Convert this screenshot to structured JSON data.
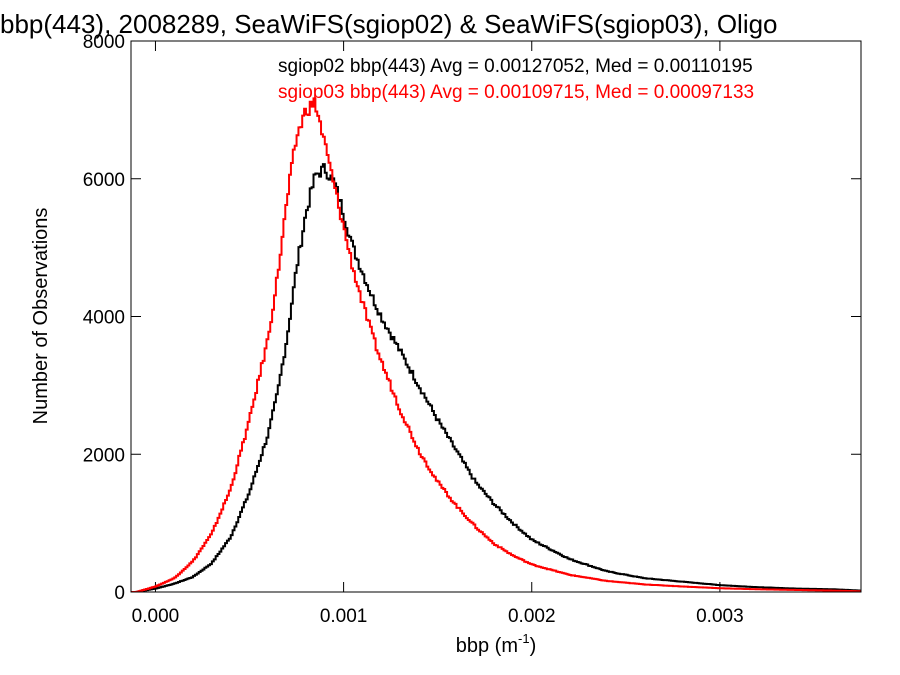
{
  "chart_data": {
    "type": "line",
    "title": "bbp(443), 2008289, SeaWiFS(sgiop02) & SeaWiFS(sgiop03), Oligo",
    "xlabel": "bbp (m",
    "xlabel_sup": "-1",
    "xlabel_close": ")",
    "ylabel": "Number of Observations",
    "xlim": [
      -0.00013,
      0.00375
    ],
    "ylim": [
      0,
      8000
    ],
    "xticks": [
      0.0,
      0.001,
      0.002,
      0.003
    ],
    "xtick_labels": [
      "0.000",
      "0.001",
      "0.002",
      "0.003"
    ],
    "yticks": [
      0,
      2000,
      4000,
      6000,
      8000
    ],
    "ytick_labels": [
      "0",
      "2000",
      "4000",
      "6000",
      "8000"
    ],
    "grid": false,
    "annotations": [
      {
        "text": "sgiop02 bbp(443) Avg = 0.00127052, Med = 0.00110195",
        "color": "#000000"
      },
      {
        "text": "sgiop03 bbp(443) Avg = 0.00109715, Med = 0.00097133",
        "color": "#ff0000"
      }
    ],
    "series": [
      {
        "name": "sgiop02",
        "color": "#000000",
        "x": [
          -0.0001,
          0.0,
          0.0001,
          0.0002,
          0.0003,
          0.0004,
          0.0005,
          0.0006,
          0.00065,
          0.0007,
          0.00075,
          0.0008,
          0.00085,
          0.0009,
          0.00095,
          0.001,
          0.00105,
          0.0011,
          0.00115,
          0.0012,
          0.00125,
          0.0013,
          0.0014,
          0.0015,
          0.0016,
          0.0017,
          0.0018,
          0.0019,
          0.002,
          0.0022,
          0.0024,
          0.0026,
          0.0028,
          0.003,
          0.0032,
          0.0034,
          0.0036,
          0.00375
        ],
        "y": [
          0,
          50,
          120,
          220,
          420,
          800,
          1450,
          2300,
          2900,
          3700,
          4700,
          5500,
          6050,
          6150,
          5950,
          5500,
          5000,
          4650,
          4300,
          4000,
          3750,
          3500,
          3000,
          2500,
          2050,
          1600,
          1280,
          1000,
          760,
          480,
          300,
          200,
          150,
          100,
          70,
          50,
          40,
          20
        ]
      },
      {
        "name": "sgiop03",
        "color": "#ff0000",
        "x": [
          -0.0001,
          0.0,
          0.0001,
          0.0002,
          0.0003,
          0.0004,
          0.0005,
          0.0006,
          0.00065,
          0.0007,
          0.00075,
          0.0008,
          0.00085,
          0.0009,
          0.00095,
          0.001,
          0.00105,
          0.0011,
          0.00115,
          0.0012,
          0.00125,
          0.0013,
          0.0014,
          0.0015,
          0.0016,
          0.0017,
          0.0018,
          0.0019,
          0.002,
          0.0022,
          0.0024,
          0.0026,
          0.0028,
          0.003,
          0.0032,
          0.0034,
          0.0036,
          0.00375
        ],
        "y": [
          0,
          80,
          200,
          450,
          850,
          1500,
          2500,
          3700,
          4600,
          5700,
          6600,
          7000,
          7100,
          6500,
          5900,
          5300,
          4700,
          4200,
          3750,
          3350,
          3000,
          2650,
          2050,
          1600,
          1250,
          950,
          700,
          530,
          400,
          250,
          160,
          110,
          80,
          55,
          40,
          30,
          20,
          10
        ]
      }
    ]
  }
}
